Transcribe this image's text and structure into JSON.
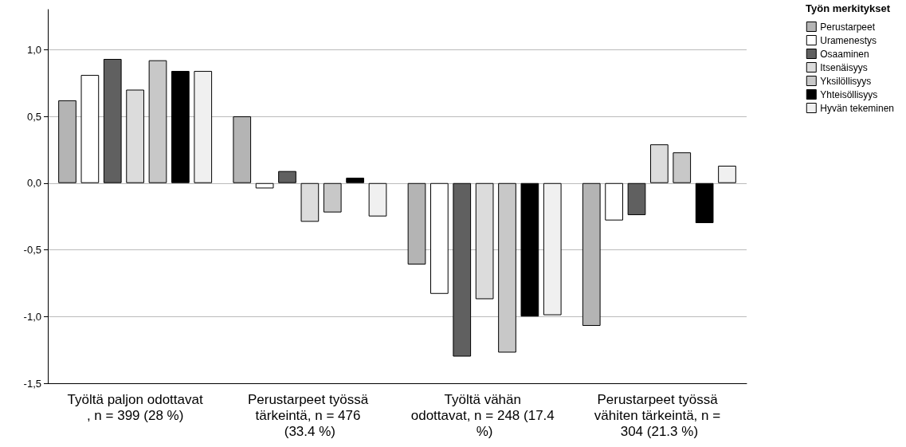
{
  "chart_data": {
    "type": "bar",
    "legend_title": "Työn merkitykset",
    "legend": "right",
    "grid": "y",
    "categories": [
      "Työltä paljon odottavat, n = 399 (28 %)",
      "Perustarpeet työssä tärkeintä, n = 476 (33.4 %)",
      "Työltä vähän odottavat, n = 248 (17.4 %)",
      "Perustarpeet työssä vähiten tärkeintä, n = 304 (21.3 %)"
    ],
    "ylim": [
      -1.5,
      1.3
    ],
    "yticks": [
      {
        "value": -1.5,
        "label": "-1,5"
      },
      {
        "value": -1.0,
        "label": "-1,0"
      },
      {
        "value": -0.5,
        "label": "-0,5"
      },
      {
        "value": 0.0,
        "label": "0,0"
      },
      {
        "value": 0.5,
        "label": "0,5"
      },
      {
        "value": 1.0,
        "label": "1,0"
      }
    ],
    "series": [
      {
        "name": "Perustarpeet",
        "color": "#b4b4b4",
        "values": [
          0.62,
          0.5,
          -0.61,
          -1.07
        ]
      },
      {
        "name": "Uramenestys",
        "color": "#ffffff",
        "values": [
          0.81,
          -0.04,
          -0.83,
          -0.28
        ]
      },
      {
        "name": "Osaaminen",
        "color": "#606060",
        "values": [
          0.93,
          0.09,
          -1.3,
          -0.24
        ]
      },
      {
        "name": "Itsenäisyys",
        "color": "#dcdcdc",
        "values": [
          0.7,
          -0.29,
          -0.87,
          0.29
        ]
      },
      {
        "name": "Yksilöllisyys",
        "color": "#c8c8c8",
        "values": [
          0.92,
          -0.22,
          -1.27,
          0.23
        ]
      },
      {
        "name": "Yhteisöllisyys",
        "color": "#000000",
        "values": [
          0.84,
          0.04,
          -1.0,
          -0.3
        ]
      },
      {
        "name": "Hyvän tekeminen",
        "color": "#f0f0f0",
        "values": [
          0.84,
          -0.25,
          -0.99,
          0.13
        ]
      }
    ]
  }
}
